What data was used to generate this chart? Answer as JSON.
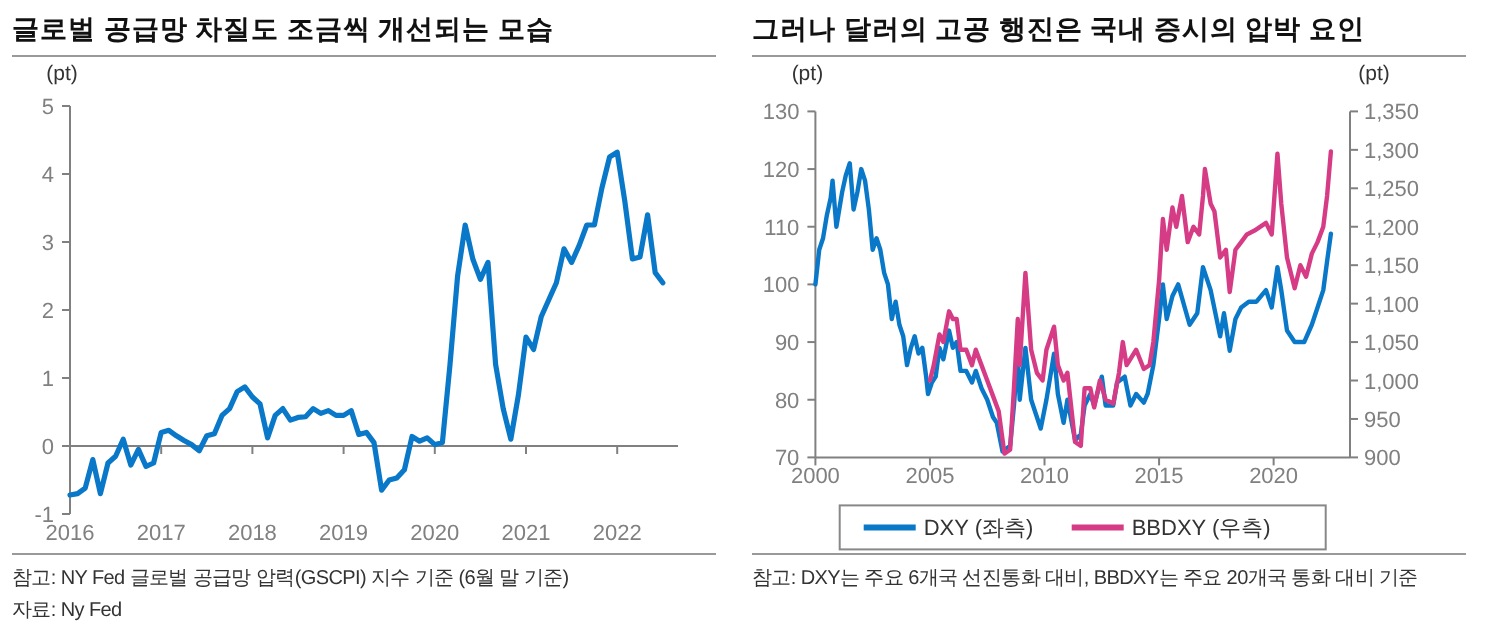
{
  "chart_data": [
    {
      "type": "line",
      "title": "글로벌 공급망 차질도 조금씩 개선되는 모습",
      "ylabel": "(pt)",
      "x": [
        "2016-01",
        "2016-02",
        "2016-03",
        "2016-04",
        "2016-05",
        "2016-06",
        "2016-07",
        "2016-08",
        "2016-09",
        "2016-10",
        "2016-11",
        "2016-12",
        "2017-01",
        "2017-02",
        "2017-03",
        "2017-04",
        "2017-05",
        "2017-06",
        "2017-07",
        "2017-08",
        "2017-09",
        "2017-10",
        "2017-11",
        "2017-12",
        "2018-01",
        "2018-02",
        "2018-03",
        "2018-04",
        "2018-05",
        "2018-06",
        "2018-07",
        "2018-08",
        "2018-09",
        "2018-10",
        "2018-11",
        "2018-12",
        "2019-01",
        "2019-02",
        "2019-03",
        "2019-04",
        "2019-05",
        "2019-06",
        "2019-07",
        "2019-08",
        "2019-09",
        "2019-10",
        "2019-11",
        "2019-12",
        "2020-01",
        "2020-02",
        "2020-03",
        "2020-04",
        "2020-05",
        "2020-06",
        "2020-07",
        "2020-08",
        "2020-09",
        "2020-10",
        "2020-11",
        "2020-12",
        "2021-01",
        "2021-02",
        "2021-03",
        "2021-04",
        "2021-05",
        "2021-06",
        "2021-07",
        "2021-08",
        "2021-09",
        "2021-10",
        "2021-11",
        "2021-12",
        "2022-01",
        "2022-02",
        "2022-03",
        "2022-04",
        "2022-05",
        "2022-06",
        "2022-07"
      ],
      "series": [
        {
          "color": "#0a78c8",
          "values": [
            -0.72,
            -0.7,
            -0.62,
            -0.2,
            -0.7,
            -0.25,
            -0.15,
            0.1,
            -0.28,
            -0.05,
            -0.3,
            -0.25,
            0.2,
            0.23,
            0.15,
            0.08,
            0.02,
            -0.07,
            0.15,
            0.18,
            0.45,
            0.55,
            0.8,
            0.87,
            0.72,
            0.62,
            0.12,
            0.45,
            0.55,
            0.38,
            0.42,
            0.43,
            0.55,
            0.48,
            0.52,
            0.45,
            0.45,
            0.52,
            0.17,
            0.2,
            0.05,
            -0.65,
            -0.5,
            -0.47,
            -0.35,
            0.14,
            0.07,
            0.12,
            0.02,
            0.05,
            1.2,
            2.5,
            3.25,
            2.75,
            2.45,
            2.7,
            1.2,
            0.55,
            0.1,
            0.75,
            1.6,
            1.42,
            1.9,
            2.15,
            2.4,
            2.9,
            2.7,
            2.95,
            3.25,
            3.25,
            3.8,
            4.25,
            4.32,
            3.6,
            2.75,
            2.78,
            3.4,
            2.55,
            2.4
          ]
        }
      ],
      "xlim": [
        "2016-01",
        "2022-09"
      ],
      "xticks": [
        "2016",
        "2017",
        "2018",
        "2019",
        "2020",
        "2021",
        "2022"
      ],
      "ylim": [
        -1,
        5
      ],
      "yticks": [
        -1,
        0,
        1,
        2,
        3,
        4,
        5
      ],
      "annotations": [
        "참고: NY Fed 글로벌 공급망 압력(GSCPI) 지수 기준 (6월 말 기준)",
        "자료: Ny Fed"
      ]
    },
    {
      "type": "line",
      "title": "그러나 달러의 고공 행진은 국내 증시의 압박 요인",
      "ylabel": "(pt)",
      "y2label": "(pt)",
      "series": [
        {
          "name": "DXY (좌측)",
          "color": "#0a78c8",
          "x": [
            "2000-01",
            "2000-03",
            "2000-05",
            "2000-07",
            "2000-09",
            "2000-10",
            "2000-12",
            "2001-01",
            "2001-03",
            "2001-05",
            "2001-07",
            "2001-09",
            "2001-11",
            "2002-01",
            "2002-03",
            "2002-05",
            "2002-07",
            "2002-09",
            "2002-11",
            "2003-01",
            "2003-03",
            "2003-05",
            "2003-07",
            "2003-09",
            "2003-11",
            "2004-01",
            "2004-03",
            "2004-05",
            "2004-07",
            "2004-09",
            "2004-11",
            "2004-12",
            "2005-02",
            "2005-04",
            "2005-06",
            "2005-08",
            "2005-11",
            "2006-01",
            "2006-03",
            "2006-05",
            "2006-08",
            "2006-11",
            "2007-01",
            "2007-04",
            "2007-07",
            "2007-10",
            "2007-12",
            "2008-03",
            "2008-07",
            "2008-09",
            "2008-11",
            "2008-12",
            "2009-03",
            "2009-06",
            "2009-09",
            "2009-11",
            "2010-02",
            "2010-06",
            "2010-08",
            "2010-11",
            "2011-01",
            "2011-05",
            "2011-08",
            "2011-10",
            "2012-01",
            "2012-03",
            "2012-07",
            "2012-09",
            "2013-01",
            "2013-03",
            "2013-07",
            "2013-10",
            "2014-01",
            "2014-05",
            "2014-07",
            "2014-10",
            "2015-01",
            "2015-03",
            "2015-05",
            "2015-08",
            "2015-11",
            "2016-05",
            "2016-09",
            "2016-12",
            "2017-04",
            "2017-09",
            "2017-11",
            "2018-02",
            "2018-05",
            "2018-08",
            "2018-12",
            "2019-04",
            "2019-09",
            "2019-12",
            "2020-03",
            "2020-05",
            "2020-08",
            "2020-12",
            "2021-05",
            "2021-09",
            "2021-12",
            "2022-03",
            "2022-05",
            "2022-07"
          ],
          "values": [
            100,
            106,
            108,
            112,
            115,
            118,
            110,
            112,
            116,
            119,
            121,
            113,
            116,
            120,
            118,
            113,
            106,
            108,
            106,
            102,
            100,
            94,
            97,
            93,
            91,
            86,
            89,
            91,
            88,
            89,
            84,
            81,
            83,
            84,
            89,
            87,
            92,
            89,
            90,
            85,
            85,
            83,
            85,
            82,
            80,
            77,
            76,
            71,
            72,
            79,
            88,
            80,
            89,
            80,
            77,
            75,
            80,
            88,
            81,
            76,
            80,
            73,
            74,
            79,
            81,
            79,
            84,
            79,
            79,
            83,
            84,
            79,
            81,
            79.5,
            81,
            86,
            94,
            100,
            94,
            98,
            100,
            93,
            95,
            103,
            99,
            91,
            95,
            88.5,
            94,
            96,
            97,
            97,
            99,
            96,
            103,
            99,
            92,
            90,
            90,
            93,
            96,
            99,
            104,
            108.8
          ]
        },
        {
          "name": "BBDXY (우측)",
          "color": "#d63c85",
          "axis": "y2",
          "x": [
            "2005-01",
            "2005-03",
            "2005-06",
            "2005-08",
            "2005-11",
            "2006-01",
            "2006-03",
            "2006-05",
            "2006-08",
            "2006-11",
            "2007-01",
            "2007-04",
            "2007-07",
            "2007-10",
            "2008-01",
            "2008-04",
            "2008-07",
            "2008-09",
            "2008-11",
            "2008-12",
            "2009-03",
            "2009-06",
            "2009-09",
            "2009-12",
            "2010-02",
            "2010-06",
            "2010-08",
            "2010-11",
            "2011-01",
            "2011-05",
            "2011-08",
            "2011-10",
            "2012-01",
            "2012-03",
            "2012-06",
            "2012-09",
            "2013-01",
            "2013-04",
            "2013-06",
            "2013-08",
            "2014-01",
            "2014-05",
            "2014-08",
            "2014-10",
            "2015-01",
            "2015-03",
            "2015-05",
            "2015-08",
            "2015-10",
            "2016-01",
            "2016-04",
            "2016-07",
            "2016-10",
            "2016-12",
            "2017-01",
            "2017-04",
            "2017-06",
            "2017-09",
            "2017-12",
            "2018-02",
            "2018-05",
            "2018-08",
            "2018-11",
            "2019-03",
            "2019-09",
            "2019-12",
            "2020-03",
            "2020-05",
            "2020-08",
            "2020-12",
            "2021-03",
            "2021-06",
            "2021-09",
            "2021-12",
            "2022-03",
            "2022-05",
            "2022-07"
          ],
          "values": [
            1000,
            1020,
            1060,
            1050,
            1090,
            1080,
            1080,
            1040,
            1040,
            1020,
            1040,
            1020,
            1000,
            980,
            960,
            905,
            910,
            990,
            1080,
            1020,
            1140,
            1040,
            1010,
            1000,
            1040,
            1070,
            1020,
            1000,
            1010,
            920,
            915,
            990,
            990,
            965,
            1000,
            975,
            970,
            1010,
            1050,
            1020,
            1040,
            1015,
            1020,
            1050,
            1130,
            1210,
            1170,
            1225,
            1200,
            1240,
            1180,
            1200,
            1190,
            1240,
            1275,
            1230,
            1220,
            1160,
            1170,
            1115,
            1170,
            1180,
            1190,
            1195,
            1205,
            1190,
            1295,
            1230,
            1160,
            1120,
            1150,
            1135,
            1165,
            1180,
            1200,
            1240,
            1298
          ]
        }
      ],
      "xlim": [
        "2000-01",
        "2023-05"
      ],
      "xticks": [
        "2000",
        "2005",
        "2010",
        "2015",
        "2020"
      ],
      "ylim": [
        70,
        130
      ],
      "yticks": [
        70,
        80,
        90,
        100,
        110,
        120,
        130
      ],
      "y2lim": [
        900,
        1350
      ],
      "y2ticks": [
        900,
        950,
        {
          "value": 1000,
          "label": "1,000"
        },
        {
          "value": 1050,
          "label": "1,050"
        },
        {
          "value": 1100,
          "label": "1,100"
        },
        {
          "value": 1150,
          "label": "1,150"
        },
        {
          "value": 1200,
          "label": "1,200"
        },
        {
          "value": 1250,
          "label": "1,250"
        },
        {
          "value": 1300,
          "label": "1,300"
        },
        {
          "value": 1350,
          "label": "1,350"
        }
      ],
      "legend": "bottom",
      "annotations": [
        "참고: DXY는 주요 6개국 선진통화 대비, BBDXY는 주요 20개국 통화 대비 기준"
      ]
    }
  ]
}
